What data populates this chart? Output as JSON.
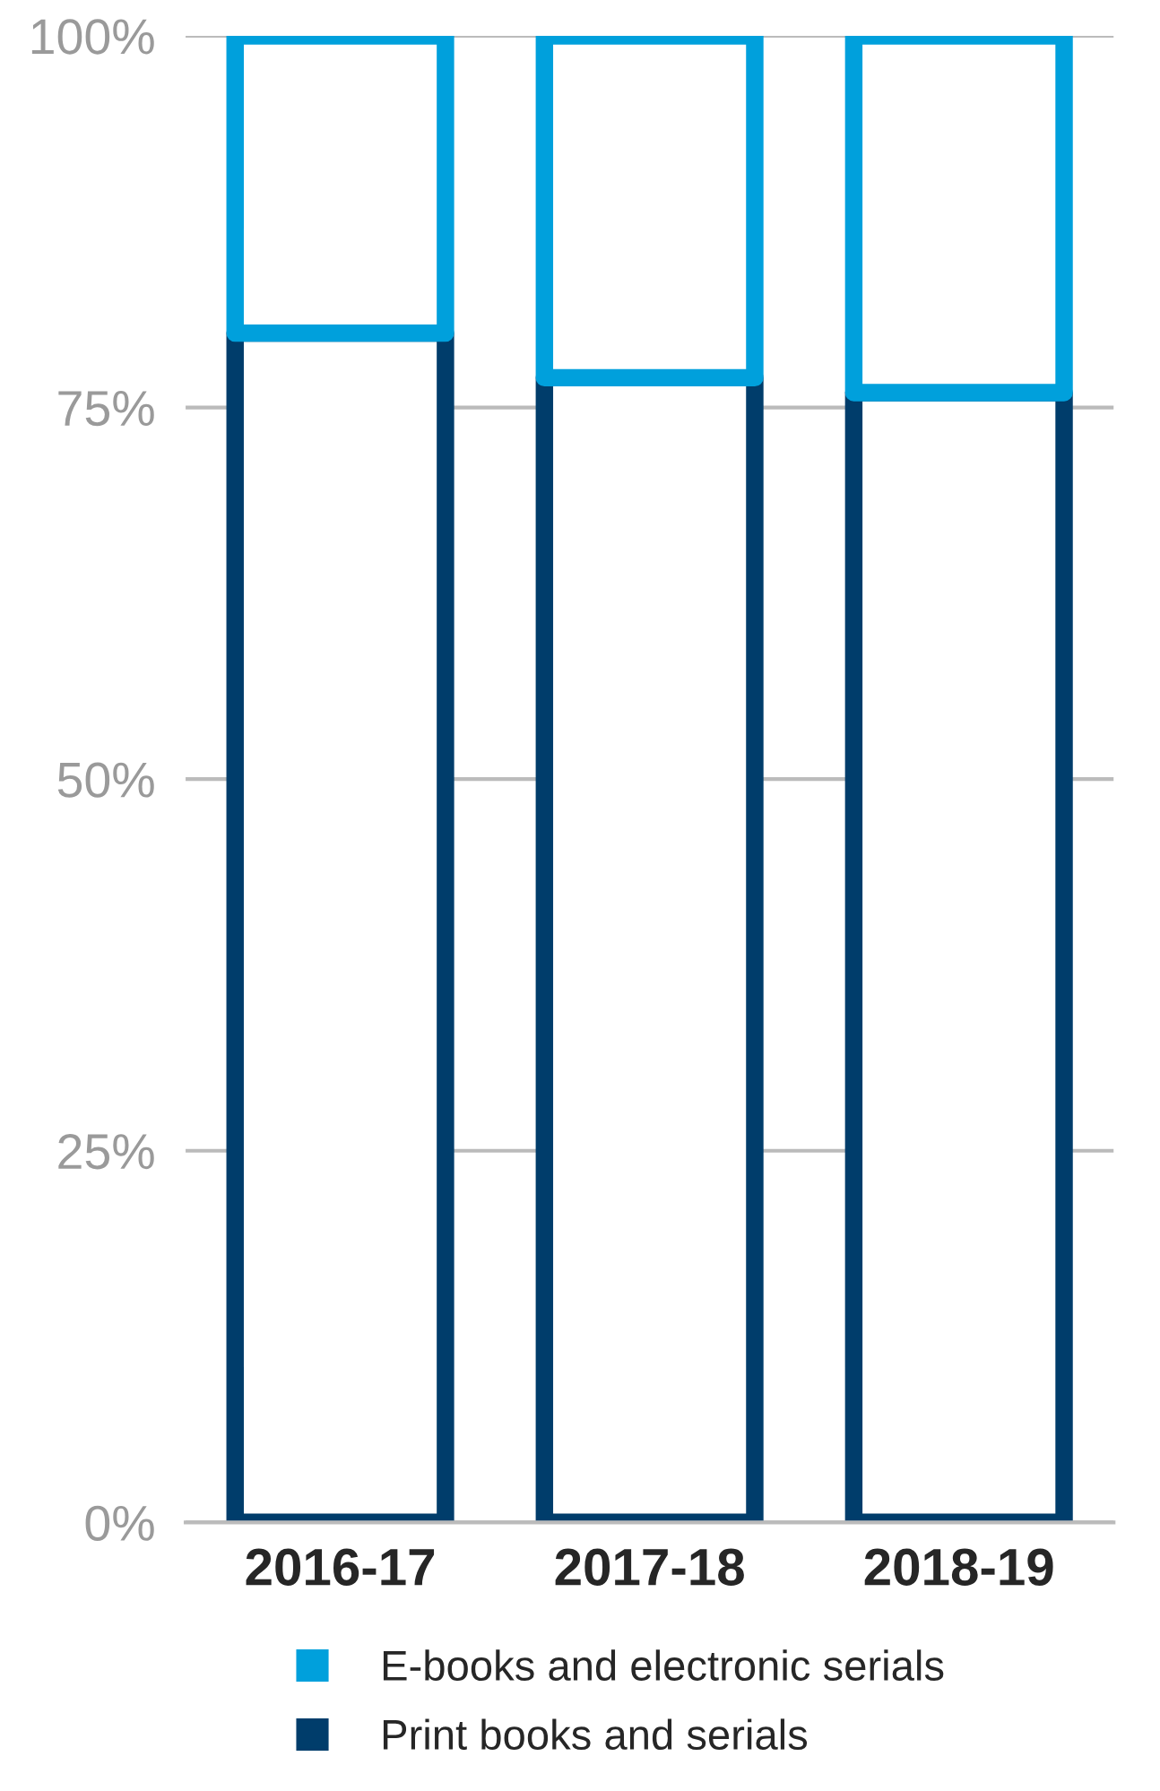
{
  "chart_data": {
    "type": "bar",
    "stacked": true,
    "categories": [
      "2016-17",
      "2017-18",
      "2018-19"
    ],
    "series": [
      {
        "name": "Print books and serials",
        "color": "#003d6b",
        "values": [
          80,
          77,
          76
        ]
      },
      {
        "name": "E-books and electronic serials",
        "color": "#00a0dc",
        "values": [
          20,
          23,
          24
        ]
      }
    ],
    "ylim": [
      0,
      100
    ],
    "yticks": [
      {
        "value": 0,
        "label": "0%"
      },
      {
        "value": 25,
        "label": "25%"
      },
      {
        "value": 50,
        "label": "50%"
      },
      {
        "value": 75,
        "label": "75%"
      },
      {
        "value": 100,
        "label": "100%"
      }
    ],
    "grid": "y",
    "legend": "bottom"
  }
}
